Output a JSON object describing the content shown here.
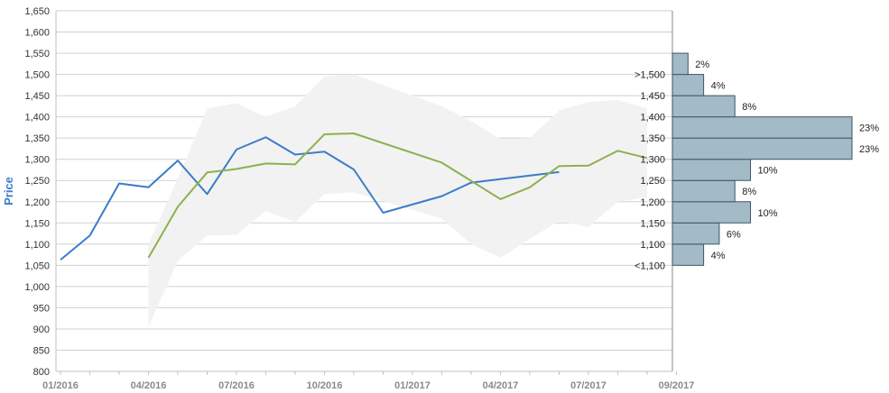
{
  "chart_data": {
    "type": "line",
    "ylabel": "Price",
    "ylim": [
      800,
      1650
    ],
    "yticks": [
      "800",
      "850",
      "900",
      "950",
      "1,000",
      "1,050",
      "1,100",
      "1,150",
      "1,200",
      "1,250",
      "1,300",
      "1,350",
      "1,400",
      "1,450",
      "1,500",
      "1,550",
      "1,600",
      "1,650"
    ],
    "xticks": [
      "01/2016",
      "04/2016",
      "07/2016",
      "10/2016",
      "01/2017",
      "04/2017",
      "07/2017",
      "09/2017"
    ],
    "grid": true,
    "colors": {
      "blue": "#3a7dc9",
      "green": "#8db04e",
      "band": "#f2f2f2",
      "hist": "#a3bac7"
    },
    "series": [
      {
        "values": [
          {
            "x": "2016-01",
            "y": 1063
          },
          {
            "x": "2016-02",
            "y": 1120
          },
          {
            "x": "2016-03",
            "y": 1243
          },
          {
            "x": "2016-04",
            "y": 1234
          },
          {
            "x": "2016-05",
            "y": 1297
          },
          {
            "x": "2016-06",
            "y": 1218
          },
          {
            "x": "2016-07",
            "y": 1323
          },
          {
            "x": "2016-08",
            "y": 1352
          },
          {
            "x": "2016-09",
            "y": 1311
          },
          {
            "x": "2016-10",
            "y": 1318
          },
          {
            "x": "2016-11",
            "y": 1276
          },
          {
            "x": "2016-12",
            "y": 1174
          },
          {
            "x": "2017-02",
            "y": 1213
          },
          {
            "x": "2017-03",
            "y": 1245
          },
          {
            "x": "2017-06",
            "y": 1270
          }
        ]
      },
      {
        "values": [
          {
            "x": "2016-04",
            "y": 1068
          },
          {
            "x": "2016-05",
            "y": 1188
          },
          {
            "x": "2016-06",
            "y": 1269
          },
          {
            "x": "2016-07",
            "y": 1277
          },
          {
            "x": "2016-08",
            "y": 1290
          },
          {
            "x": "2016-09",
            "y": 1288
          },
          {
            "x": "2016-10",
            "y": 1359
          },
          {
            "x": "2016-11",
            "y": 1361
          },
          {
            "x": "2017-02",
            "y": 1292
          },
          {
            "x": "2017-04",
            "y": 1206
          },
          {
            "x": "2017-05",
            "y": 1234
          },
          {
            "x": "2017-06",
            "y": 1284
          },
          {
            "x": "2017-07",
            "y": 1285
          },
          {
            "x": "2017-08",
            "y": 1320
          },
          {
            "x": "2017-09",
            "y": 1303
          }
        ]
      }
    ],
    "band": [
      {
        "x": "2016-04",
        "low": 905,
        "high": 1100
      },
      {
        "x": "2016-05",
        "low": 1060,
        "high": 1255
      },
      {
        "x": "2016-06",
        "low": 1120,
        "high": 1420
      },
      {
        "x": "2016-07",
        "low": 1122,
        "high": 1432
      },
      {
        "x": "2016-08",
        "low": 1178,
        "high": 1400
      },
      {
        "x": "2016-09",
        "low": 1152,
        "high": 1425
      },
      {
        "x": "2016-10",
        "low": 1218,
        "high": 1495
      },
      {
        "x": "2016-11",
        "low": 1222,
        "high": 1500
      },
      {
        "x": "2017-02",
        "low": 1160,
        "high": 1425
      },
      {
        "x": "2017-03",
        "low": 1100,
        "high": 1390
      },
      {
        "x": "2017-04",
        "low": 1068,
        "high": 1348
      },
      {
        "x": "2017-05",
        "low": 1112,
        "high": 1350
      },
      {
        "x": "2017-06",
        "low": 1155,
        "high": 1415
      },
      {
        "x": "2017-07",
        "low": 1140,
        "high": 1435
      },
      {
        "x": "2017-08",
        "low": 1200,
        "high": 1440
      },
      {
        "x": "2017-09",
        "low": 1210,
        "high": 1420
      }
    ],
    "histogram": [
      {
        "label": "<1,100",
        "pct": "4%",
        "value": 4
      },
      {
        "label": "1,100",
        "pct": "6%",
        "value": 6
      },
      {
        "label": "1,150",
        "pct": "10%",
        "value": 10
      },
      {
        "label": "1,200",
        "pct": "8%",
        "value": 8
      },
      {
        "label": "1,250",
        "pct": "10%",
        "value": 10
      },
      {
        "label": "1,300",
        "pct": "23%",
        "value": 23
      },
      {
        "label": "1,350",
        "pct": "23%",
        "value": 23
      },
      {
        "label": "1,400",
        "pct": "8%",
        "value": 8
      },
      {
        "label": "1,450",
        "pct": "4%",
        "value": 4
      },
      {
        "label": ">1,500",
        "pct": "2%",
        "value": 2
      }
    ]
  }
}
